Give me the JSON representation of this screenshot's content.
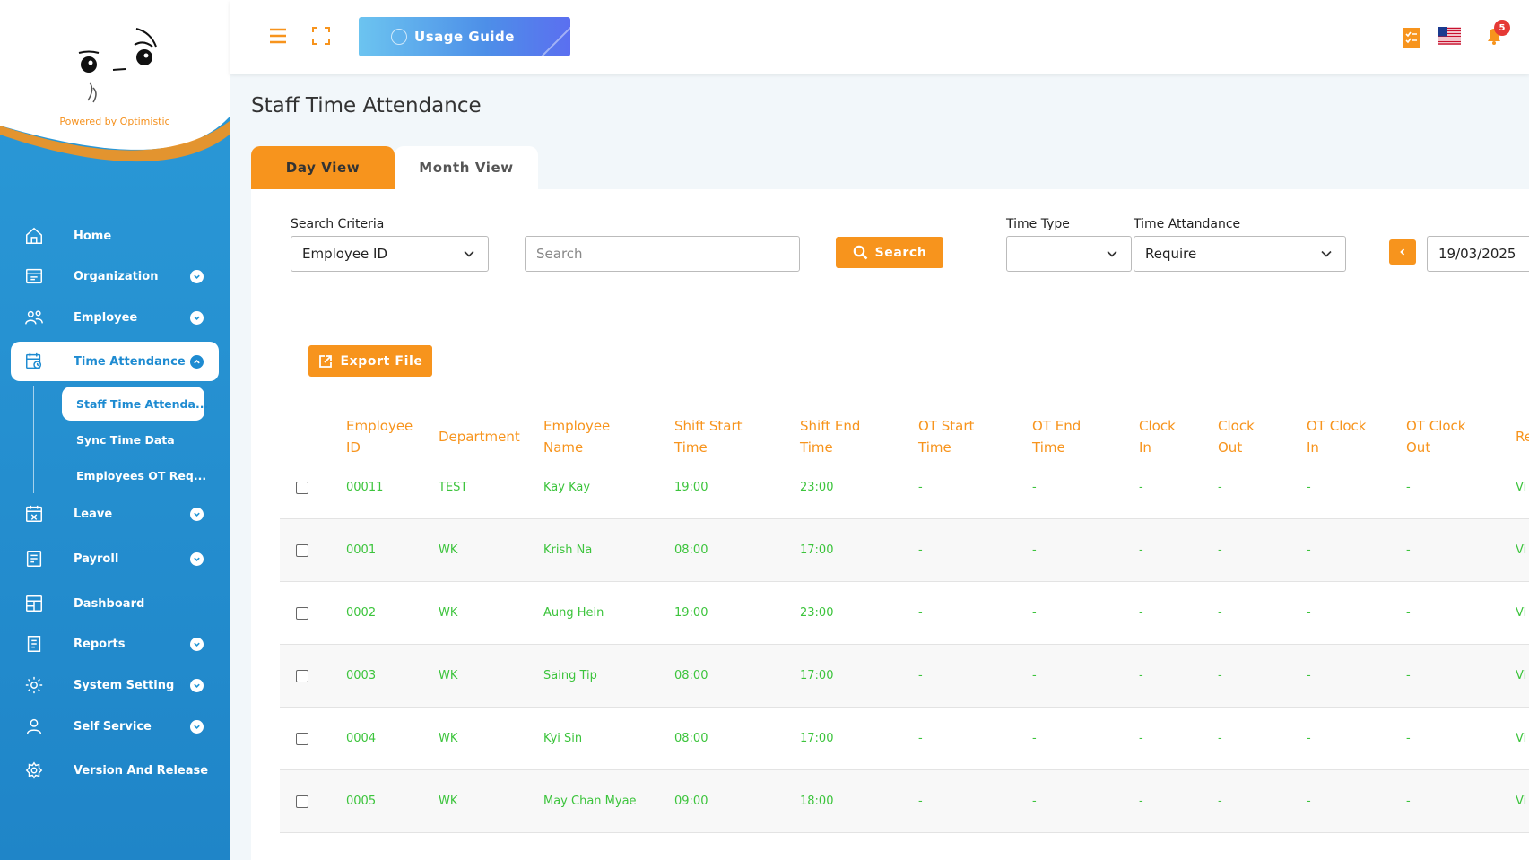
{
  "sidebar": {
    "powered_by": "Powered by Optimistic",
    "items": [
      {
        "label": "Home",
        "icon": "home-icon"
      },
      {
        "label": "Organization",
        "icon": "organization-icon"
      },
      {
        "label": "Employee",
        "icon": "employee-icon"
      },
      {
        "label": "Time Attendance",
        "icon": "calendar-clock-icon"
      },
      {
        "label": "Leave",
        "icon": "leave-icon"
      },
      {
        "label": "Payroll",
        "icon": "payroll-icon"
      },
      {
        "label": "Dashboard",
        "icon": "dashboard-icon"
      },
      {
        "label": "Reports",
        "icon": "reports-icon"
      },
      {
        "label": "System Setting",
        "icon": "gear-icon"
      },
      {
        "label": "Self Service",
        "icon": "user-icon"
      },
      {
        "label": "Version And Release",
        "icon": "version-icon"
      }
    ],
    "sub_items": [
      {
        "label": "Staff Time Attenda..."
      },
      {
        "label": "Sync Time Data"
      },
      {
        "label": "Employees OT Req..."
      }
    ]
  },
  "topbar": {
    "usage_guide": "Usage Guide",
    "notification_count": "5"
  },
  "page": {
    "title": "Staff Time Attendance",
    "tabs": [
      "Day View",
      "Month View"
    ]
  },
  "filters": {
    "search_criteria_label": "Search Criteria",
    "search_criteria_value": "Employee ID",
    "search_placeholder": "Search",
    "search_button": "Search",
    "time_type_label": "Time Type",
    "time_type_value": "",
    "time_attendance_label": "Time Attandance",
    "time_attendance_value": "Require",
    "date_value": "19/03/2025"
  },
  "export_button": "Export File",
  "table": {
    "columns": [
      [
        "Employee",
        "ID"
      ],
      [
        "Department"
      ],
      [
        "Employee",
        "Name"
      ],
      [
        "Shift Start",
        "Time"
      ],
      [
        "Shift End",
        "Time"
      ],
      [
        "OT Start",
        "Time"
      ],
      [
        "OT End",
        "Time"
      ],
      [
        "Clock",
        "In"
      ],
      [
        "Clock",
        "Out"
      ],
      [
        "OT Clock",
        "In"
      ],
      [
        "OT Clock",
        "Out"
      ],
      [
        "Re"
      ]
    ],
    "rows": [
      {
        "id": "00011",
        "dept": "TEST",
        "name": "Kay Kay",
        "shift_start": "19:00",
        "shift_end": "23:00",
        "ot_start": "-",
        "ot_end": "-",
        "clock_in": "-",
        "clock_out": "-",
        "ot_clock_in": "-",
        "ot_clock_out": "-",
        "re": "Vi"
      },
      {
        "id": "0001",
        "dept": "WK",
        "name": "Krish Na",
        "shift_start": "08:00",
        "shift_end": "17:00",
        "ot_start": "-",
        "ot_end": "-",
        "clock_in": "-",
        "clock_out": "-",
        "ot_clock_in": "-",
        "ot_clock_out": "-",
        "re": "Vi"
      },
      {
        "id": "0002",
        "dept": "WK",
        "name": "Aung Hein",
        "shift_start": "19:00",
        "shift_end": "23:00",
        "ot_start": "-",
        "ot_end": "-",
        "clock_in": "-",
        "clock_out": "-",
        "ot_clock_in": "-",
        "ot_clock_out": "-",
        "re": "Vi"
      },
      {
        "id": "0003",
        "dept": "WK",
        "name": "Saing Tip",
        "shift_start": "08:00",
        "shift_end": "17:00",
        "ot_start": "-",
        "ot_end": "-",
        "clock_in": "-",
        "clock_out": "-",
        "ot_clock_in": "-",
        "ot_clock_out": "-",
        "re": "Vi"
      },
      {
        "id": "0004",
        "dept": "WK",
        "name": "Kyi Sin",
        "shift_start": "08:00",
        "shift_end": "17:00",
        "ot_start": "-",
        "ot_end": "-",
        "clock_in": "-",
        "clock_out": "-",
        "ot_clock_in": "-",
        "ot_clock_out": "-",
        "re": "Vi"
      },
      {
        "id": "0005",
        "dept": "WK",
        "name": "May Chan Myae",
        "shift_start": "09:00",
        "shift_end": "18:00",
        "ot_start": "-",
        "ot_end": "-",
        "clock_in": "-",
        "clock_out": "-",
        "ot_clock_in": "-",
        "ot_clock_out": "-",
        "re": "Vi"
      }
    ]
  },
  "colors": {
    "accent_orange": "#f7941d",
    "sidebar_blue": "#2196d6",
    "cell_green": "#3cc43c"
  }
}
